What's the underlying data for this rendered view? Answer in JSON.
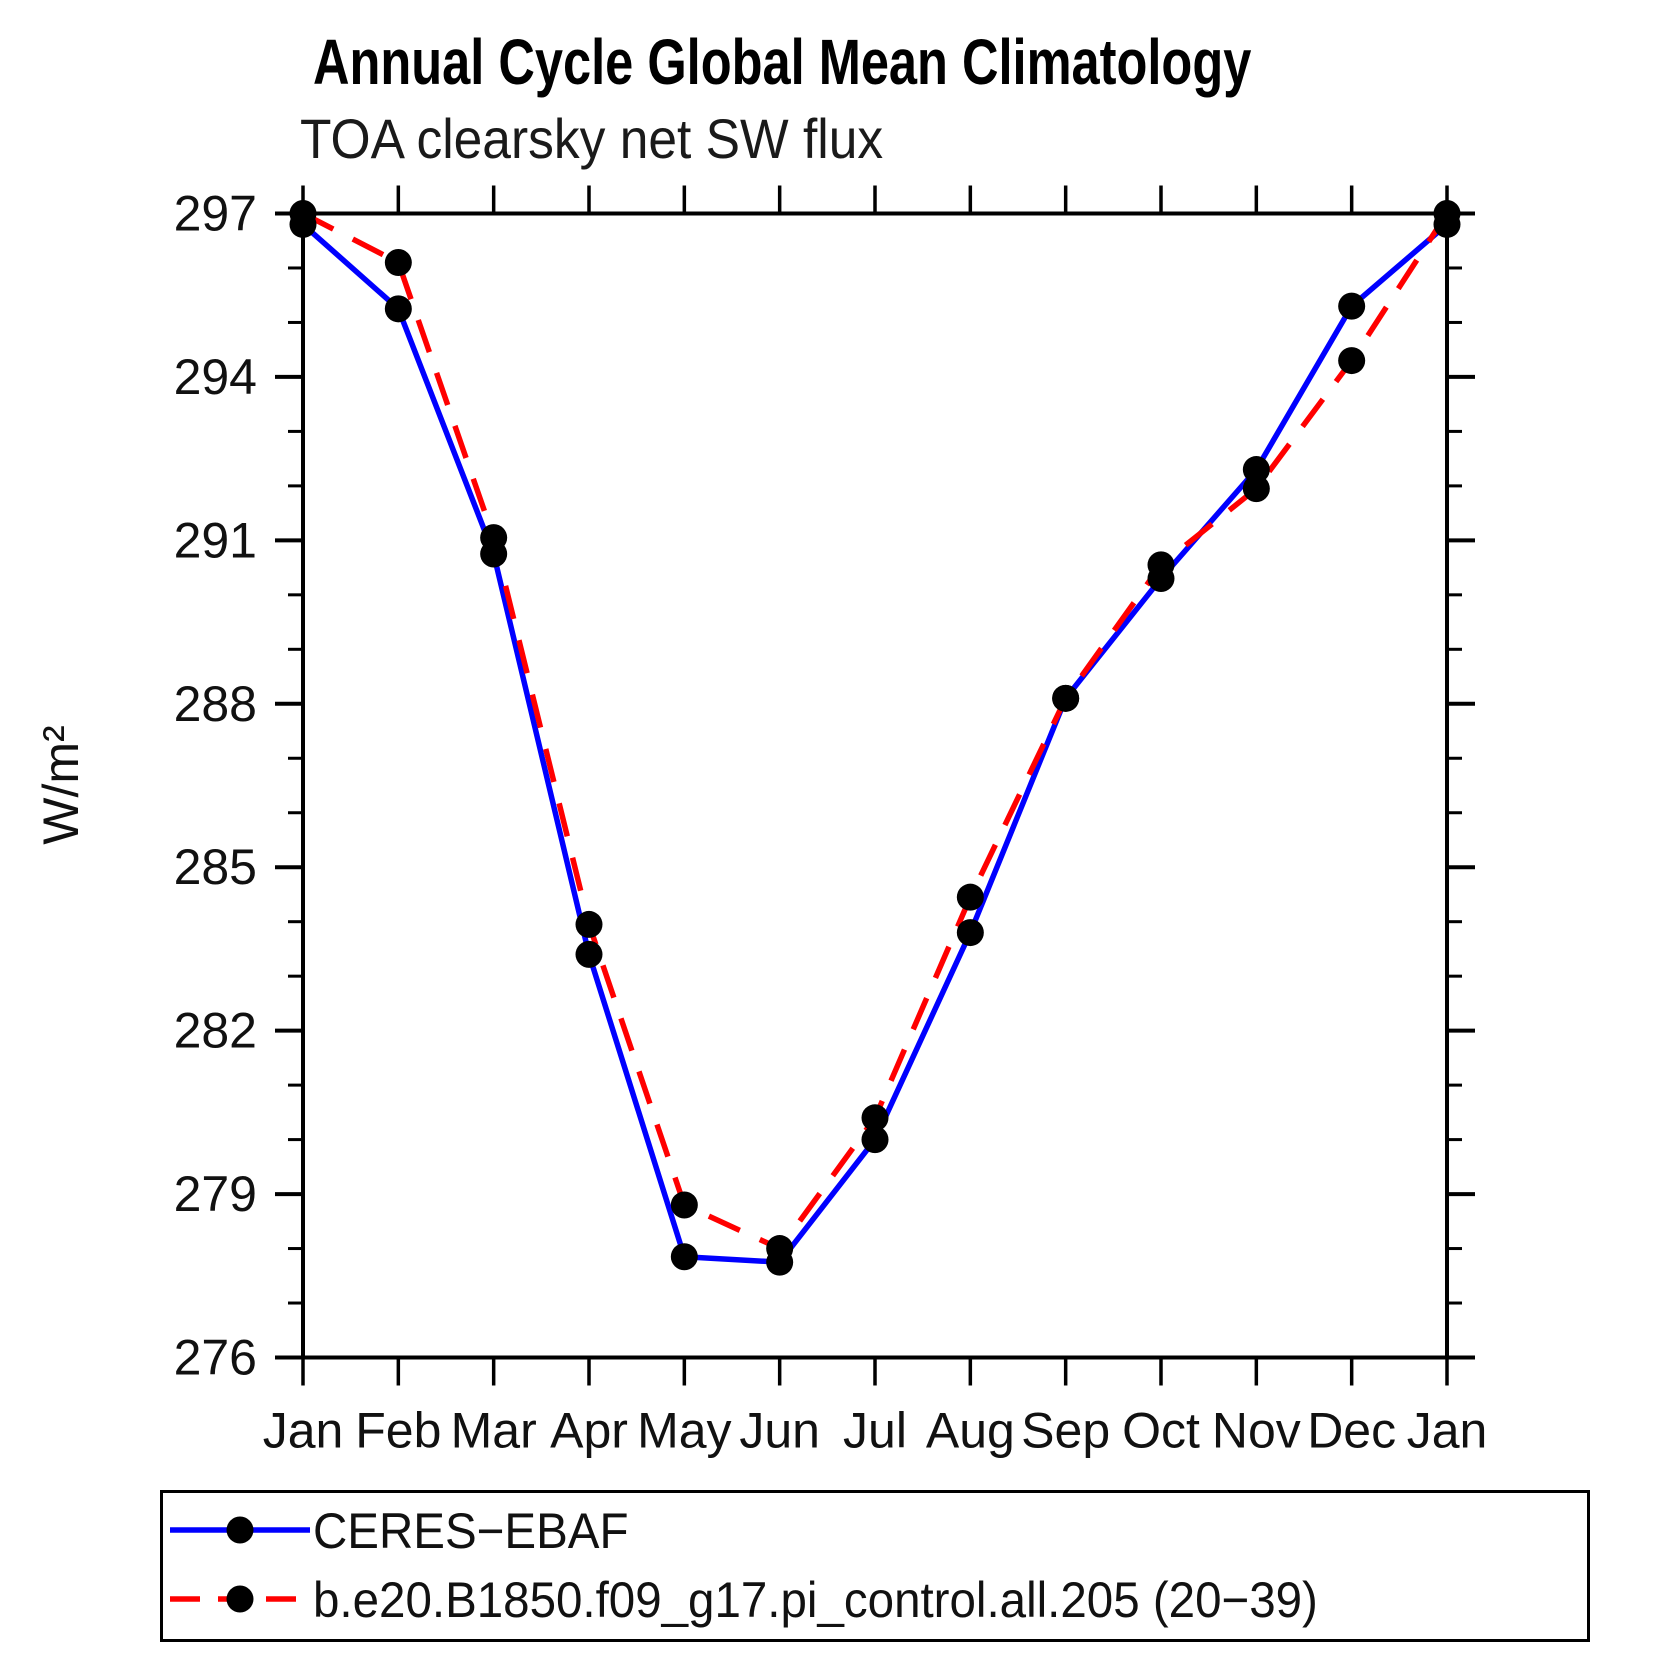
{
  "title": "Annual Cycle Global Mean Climatology",
  "subtitle": "TOA clearsky net SW flux",
  "chart_data": {
    "type": "line",
    "categories": [
      "Jan",
      "Feb",
      "Mar",
      "Apr",
      "May",
      "Jun",
      "Jul",
      "Aug",
      "Sep",
      "Oct",
      "Nov",
      "Dec",
      "Jan"
    ],
    "series": [
      {
        "name": "CERES−EBAF",
        "color": "#0000ff",
        "style": "solid",
        "values": [
          296.8,
          295.25,
          290.75,
          283.4,
          277.85,
          277.75,
          280.0,
          283.8,
          288.1,
          290.3,
          292.3,
          295.3,
          296.8
        ]
      },
      {
        "name": "b.e20.B1850.f09_g17.pi_control.all.205 (20−39)",
        "color": "#ff0000",
        "style": "dashed",
        "values": [
          297.0,
          296.1,
          291.05,
          283.95,
          278.8,
          278.0,
          280.4,
          284.45,
          288.1,
          290.55,
          291.95,
          294.3,
          297.0
        ]
      }
    ],
    "ylabel": "W/m²",
    "ylim": [
      276,
      297
    ],
    "yticks": [
      276,
      279,
      282,
      285,
      288,
      291,
      294,
      297
    ],
    "minor_tick_interval": 1,
    "marker_color": "#000000",
    "axis_color": "#000000",
    "legend_position": "bottom",
    "grid": "off"
  }
}
